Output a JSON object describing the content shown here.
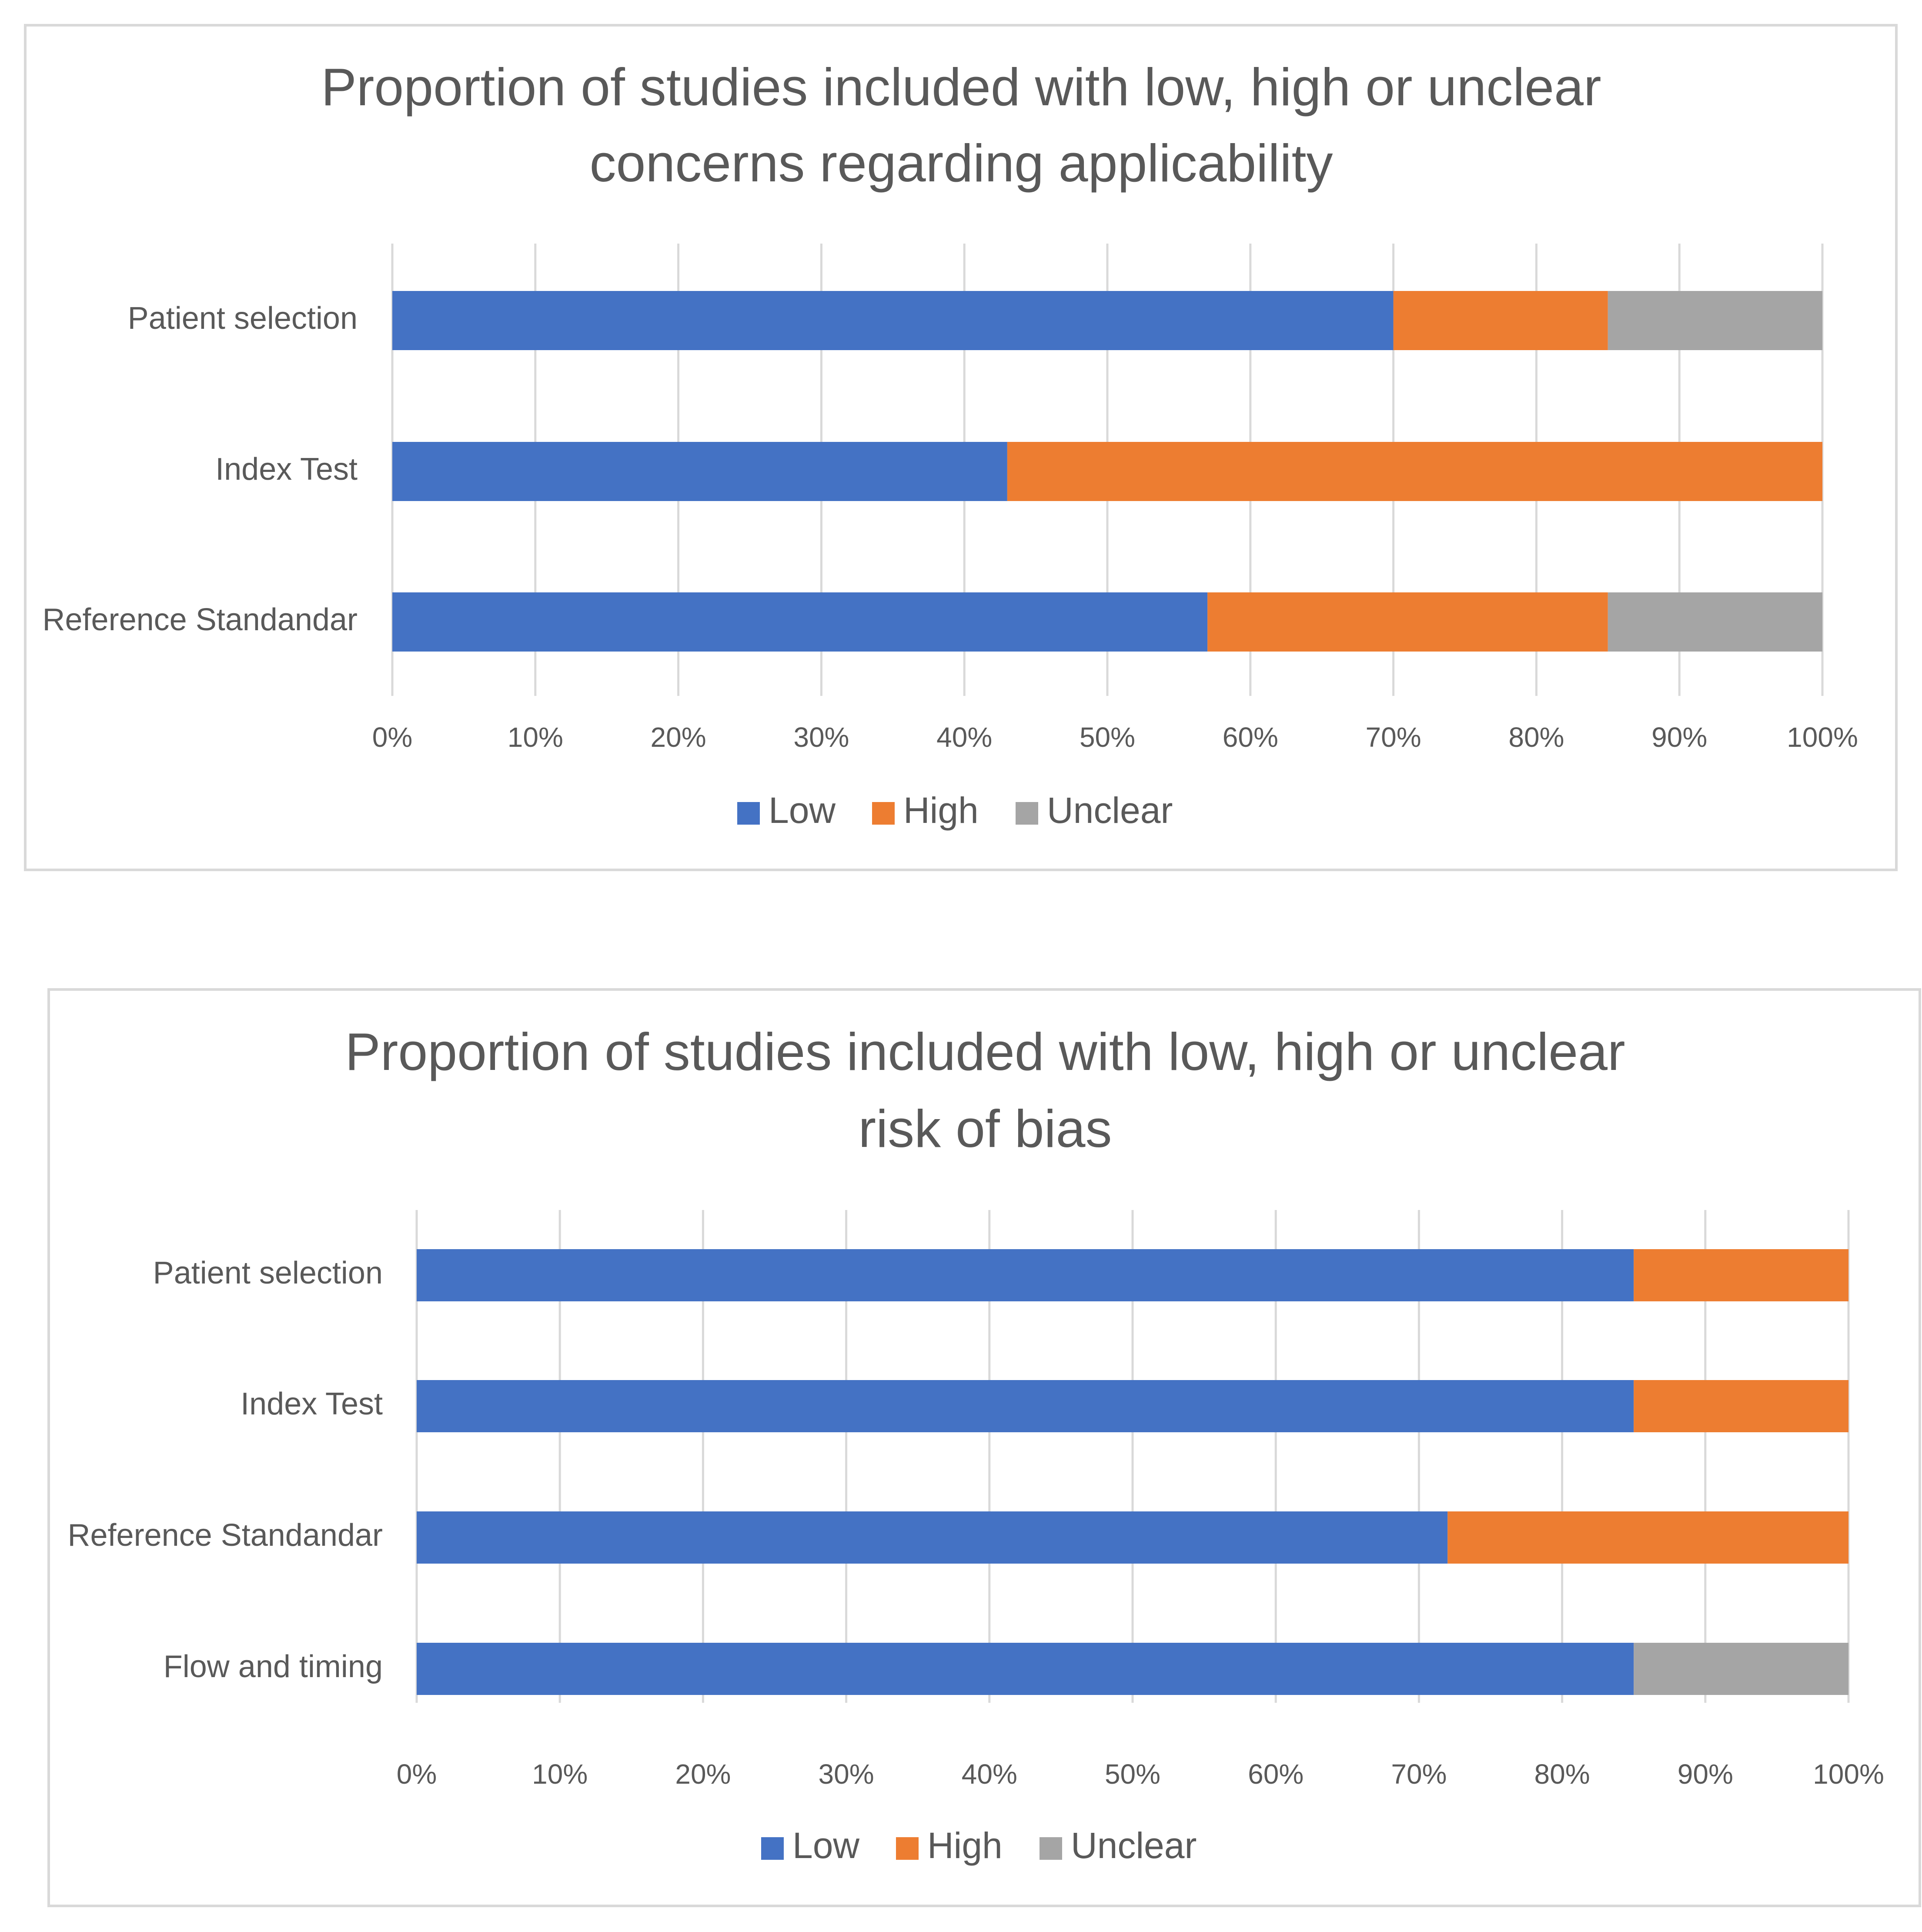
{
  "colors": {
    "low": "#4472C4",
    "high": "#ED7D31",
    "unclear": "#A5A5A5",
    "grid": "#D9D9D9",
    "text": "#595959",
    "frame": "#D9D9D9"
  },
  "chart_data": [
    {
      "type": "bar",
      "orientation": "horizontal",
      "stacked": "percent",
      "title": [
        "Proportion of studies included with low, high or unclear",
        "concerns regarding applicability"
      ],
      "categories": [
        "Patient selection",
        "Index Test",
        "Reference Standandar"
      ],
      "series": [
        {
          "name": "Low",
          "values": [
            70,
            43,
            57
          ]
        },
        {
          "name": "High",
          "values": [
            15,
            57,
            28
          ]
        },
        {
          "name": "Unclear",
          "values": [
            15,
            0,
            15
          ]
        }
      ],
      "xlim": [
        0,
        100
      ],
      "xticks": [
        "0%",
        "10%",
        "20%",
        "30%",
        "40%",
        "50%",
        "60%",
        "70%",
        "80%",
        "90%",
        "100%"
      ],
      "legend": [
        "Low",
        "High",
        "Unclear"
      ],
      "legend_position": "bottom",
      "grid": true
    },
    {
      "type": "bar",
      "orientation": "horizontal",
      "stacked": "percent",
      "title": [
        "Proportion of studies included with low, high or unclear",
        "risk of bias"
      ],
      "categories": [
        "Patient selection",
        "Index Test",
        "Reference Standandar",
        "Flow and timing"
      ],
      "series": [
        {
          "name": "Low",
          "values": [
            85,
            85,
            72,
            85
          ]
        },
        {
          "name": "High",
          "values": [
            15,
            15,
            28,
            0
          ]
        },
        {
          "name": "Unclear",
          "values": [
            0,
            0,
            0,
            15
          ]
        }
      ],
      "xlim": [
        0,
        100
      ],
      "xticks": [
        "0%",
        "10%",
        "20%",
        "30%",
        "40%",
        "50%",
        "60%",
        "70%",
        "80%",
        "90%",
        "100%"
      ],
      "legend": [
        "Low",
        "High",
        "Unclear"
      ],
      "legend_position": "bottom",
      "grid": true
    }
  ]
}
